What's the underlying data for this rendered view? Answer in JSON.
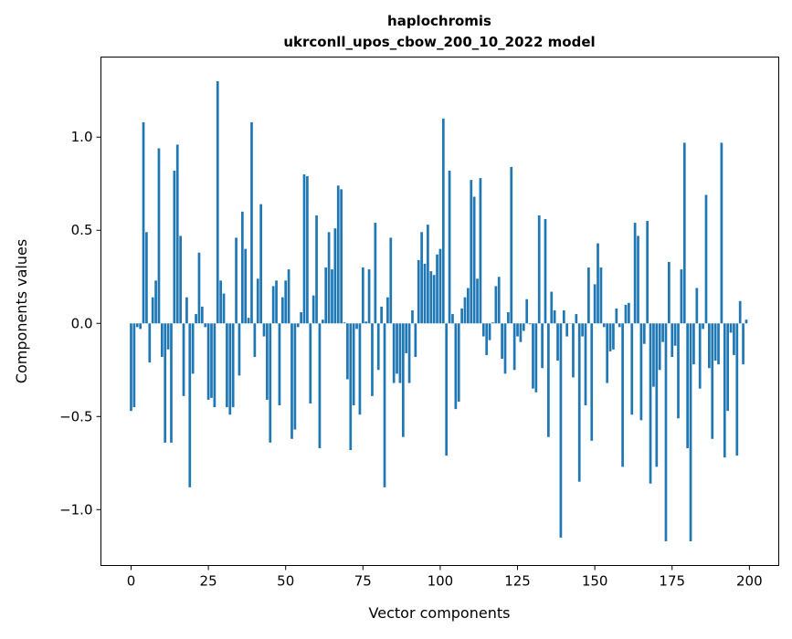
{
  "chart_data": {
    "type": "bar",
    "title_lines": [
      "haplochromis",
      "ukrconll_upos_cbow_200_10_2022 model"
    ],
    "xlabel": "Vector components",
    "ylabel": "Components values",
    "xlim": [
      -9.75,
      209.5
    ],
    "ylim": [
      -1.3,
      1.43
    ],
    "xticks": [
      0,
      25,
      50,
      75,
      100,
      125,
      150,
      175,
      200
    ],
    "xtick_labels": [
      "0",
      "25",
      "50",
      "75",
      "100",
      "125",
      "150",
      "175",
      "200"
    ],
    "yticks": [
      -1.0,
      -0.5,
      0.0,
      0.5,
      1.0
    ],
    "ytick_labels": [
      "−1.0",
      "−0.5",
      "0.0",
      "0.5",
      "1.0"
    ],
    "grid": false,
    "bar_color": "#1f77b4",
    "x_start": 0,
    "values": [
      -0.47,
      -0.45,
      -0.02,
      -0.03,
      1.08,
      0.49,
      -0.21,
      0.14,
      0.23,
      0.94,
      -0.18,
      -0.64,
      -0.14,
      -0.64,
      0.82,
      0.96,
      0.47,
      -0.39,
      0.14,
      -0.88,
      -0.27,
      0.05,
      0.38,
      0.09,
      -0.02,
      -0.41,
      -0.4,
      -0.45,
      1.3,
      0.23,
      0.16,
      -0.45,
      -0.49,
      -0.45,
      0.46,
      -0.28,
      0.6,
      0.4,
      0.03,
      1.08,
      -0.18,
      0.24,
      0.64,
      -0.07,
      -0.41,
      -0.64,
      0.2,
      0.23,
      -0.44,
      0.14,
      0.23,
      0.29,
      -0.62,
      -0.57,
      -0.02,
      0.06,
      0.8,
      0.79,
      -0.43,
      0.15,
      0.58,
      -0.67,
      0.02,
      0.3,
      0.49,
      0.29,
      0.51,
      0.74,
      0.72,
      0.005,
      -0.3,
      -0.68,
      -0.44,
      -0.03,
      -0.49,
      0.3,
      0.01,
      0.29,
      -0.39,
      0.54,
      -0.25,
      0.09,
      -0.88,
      0.14,
      0.46,
      -0.32,
      -0.27,
      -0.32,
      -0.61,
      -0.16,
      -0.32,
      0.07,
      -0.18,
      0.34,
      0.49,
      0.32,
      0.53,
      0.28,
      0.26,
      0.37,
      0.4,
      1.1,
      -0.71,
      0.82,
      0.05,
      -0.46,
      -0.42,
      0.08,
      0.14,
      0.19,
      0.77,
      0.68,
      0.24,
      0.78,
      -0.07,
      -0.17,
      -0.09,
      0.005,
      0.2,
      0.25,
      -0.19,
      -0.27,
      0.06,
      0.84,
      -0.25,
      -0.07,
      -0.1,
      -0.04,
      0.13,
      -0.005,
      -0.35,
      -0.37,
      0.58,
      -0.24,
      0.56,
      -0.61,
      0.17,
      0.07,
      -0.2,
      -1.15,
      0.07,
      -0.07,
      0.0,
      -0.29,
      0.05,
      -0.85,
      -0.07,
      -0.44,
      0.3,
      -0.63,
      0.21,
      0.43,
      0.3,
      -0.02,
      -0.32,
      -0.15,
      -0.14,
      0.08,
      -0.02,
      -0.77,
      0.1,
      0.11,
      -0.49,
      0.54,
      0.47,
      -0.52,
      -0.11,
      0.55,
      -0.86,
      -0.34,
      -0.77,
      -0.25,
      -0.1,
      -1.17,
      0.33,
      -0.18,
      -0.12,
      -0.51,
      0.29,
      0.97,
      -0.67,
      -1.17,
      -0.22,
      0.19,
      -0.35,
      -0.03,
      0.69,
      -0.24,
      -0.62,
      -0.2,
      -0.22,
      0.97,
      -0.72,
      -0.47,
      -0.05,
      -0.17,
      -0.71,
      0.12,
      -0.22,
      0.02
    ]
  }
}
